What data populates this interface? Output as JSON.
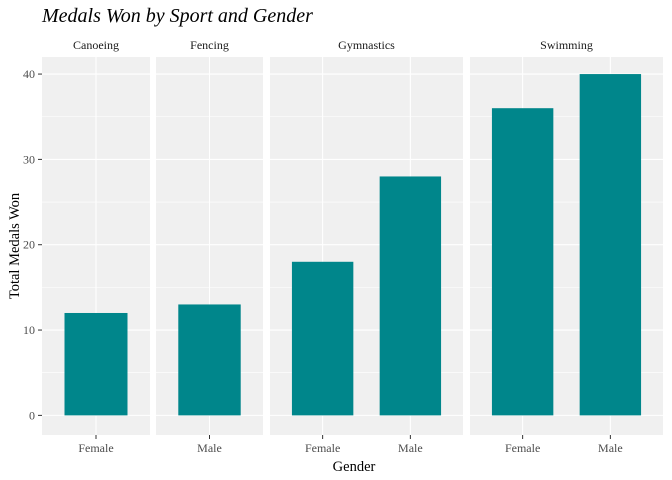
{
  "chart_data": {
    "type": "bar",
    "title": "Medals Won by Sport and Gender",
    "xlabel": "Gender",
    "ylabel": "Total Medals Won",
    "ylim": [
      -2.3,
      42
    ],
    "yticks": [
      0,
      10,
      20,
      30,
      40
    ],
    "bar_color": "#00868b",
    "panel_background": "#f0f0f0",
    "grid": true,
    "facets": [
      {
        "sport": "Canoeing",
        "categories": [
          "Female"
        ],
        "values": [
          12
        ]
      },
      {
        "sport": "Fencing",
        "categories": [
          "Male"
        ],
        "values": [
          13
        ]
      },
      {
        "sport": "Gymnastics",
        "categories": [
          "Female",
          "Male"
        ],
        "values": [
          18,
          28
        ]
      },
      {
        "sport": "Swimming",
        "categories": [
          "Female",
          "Male"
        ],
        "values": [
          36,
          40
        ]
      }
    ]
  }
}
